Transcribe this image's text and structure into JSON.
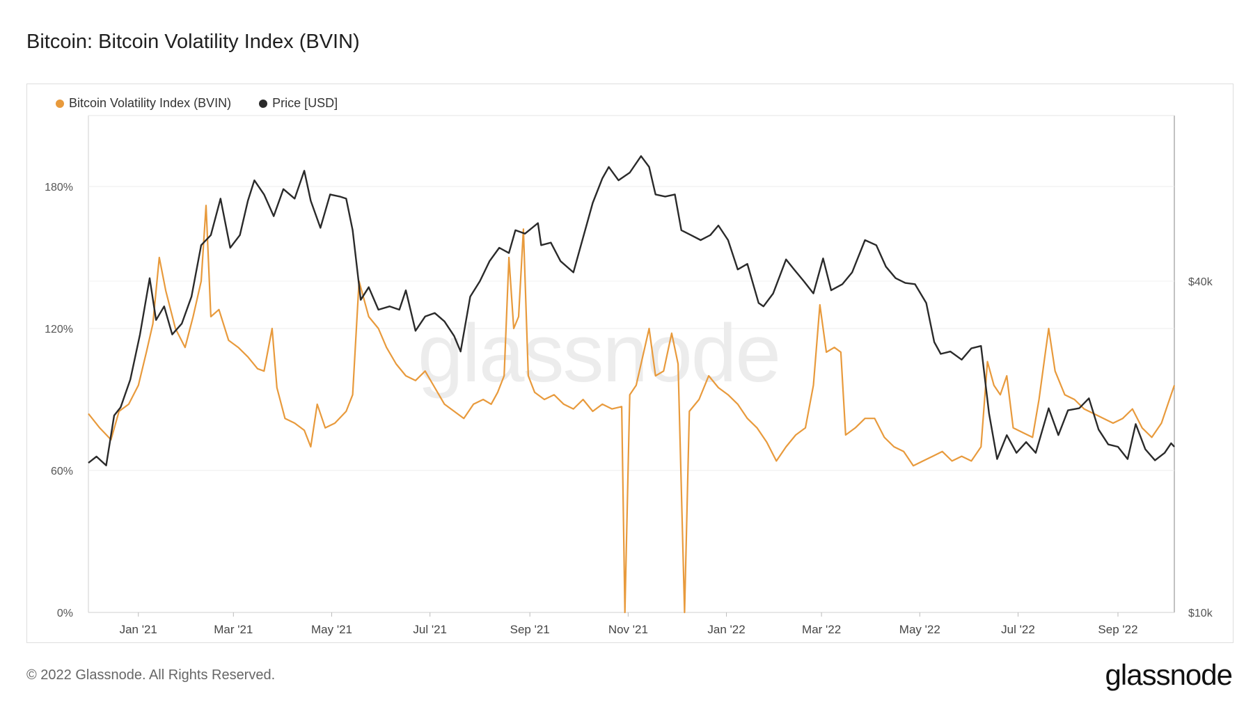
{
  "title": "Bitcoin: Bitcoin Volatility Index (BVIN)",
  "footer": "© 2022 Glassnode. All Rights Reserved.",
  "logo_text": "glassnode",
  "watermark_text": "glassnode",
  "chart_data": {
    "type": "line",
    "title": "Bitcoin: Bitcoin Volatility Index (BVIN)",
    "legend_position": "top-left",
    "x_ticks": [
      "Jan '21",
      "Mar '21",
      "May '21",
      "Jul '21",
      "Sep '21",
      "Nov '21",
      "Jan '22",
      "Mar '22",
      "May '22",
      "Jul '22",
      "Sep '22"
    ],
    "x_range": [
      "2020-12-01",
      "2022-10-06"
    ],
    "y_left": {
      "ticks": [
        "0%",
        "60%",
        "120%",
        "180%"
      ],
      "range": [
        0,
        210
      ],
      "unit": "%"
    },
    "y_right": {
      "ticks": [
        "$10k",
        "$40k"
      ],
      "scale": "log",
      "range": [
        10000,
        80000
      ]
    },
    "series": [
      {
        "name": "Bitcoin Volatility Index (BVIN)",
        "color": "#e89a3c",
        "axis": "left",
        "points": [
          [
            "2020-12-01",
            84
          ],
          [
            "2020-12-08",
            78
          ],
          [
            "2020-12-15",
            73
          ],
          [
            "2020-12-20",
            85
          ],
          [
            "2020-12-26",
            88
          ],
          [
            "2021-01-01",
            96
          ],
          [
            "2021-01-06",
            110
          ],
          [
            "2021-01-10",
            122
          ],
          [
            "2021-01-14",
            150
          ],
          [
            "2021-01-18",
            136
          ],
          [
            "2021-01-24",
            120
          ],
          [
            "2021-01-30",
            112
          ],
          [
            "2021-02-04",
            125
          ],
          [
            "2021-02-09",
            140
          ],
          [
            "2021-02-12",
            172
          ],
          [
            "2021-02-15",
            125
          ],
          [
            "2021-02-20",
            128
          ],
          [
            "2021-02-26",
            115
          ],
          [
            "2021-03-04",
            112
          ],
          [
            "2021-03-10",
            108
          ],
          [
            "2021-03-16",
            103
          ],
          [
            "2021-03-20",
            102
          ],
          [
            "2021-03-25",
            120
          ],
          [
            "2021-03-28",
            95
          ],
          [
            "2021-04-02",
            82
          ],
          [
            "2021-04-08",
            80
          ],
          [
            "2021-04-14",
            77
          ],
          [
            "2021-04-18",
            70
          ],
          [
            "2021-04-22",
            88
          ],
          [
            "2021-04-27",
            78
          ],
          [
            "2021-05-03",
            80
          ],
          [
            "2021-05-10",
            85
          ],
          [
            "2021-05-14",
            92
          ],
          [
            "2021-05-18",
            140
          ],
          [
            "2021-05-24",
            125
          ],
          [
            "2021-05-30",
            120
          ],
          [
            "2021-06-04",
            112
          ],
          [
            "2021-06-10",
            105
          ],
          [
            "2021-06-16",
            100
          ],
          [
            "2021-06-22",
            98
          ],
          [
            "2021-06-28",
            102
          ],
          [
            "2021-07-04",
            95
          ],
          [
            "2021-07-10",
            88
          ],
          [
            "2021-07-16",
            85
          ],
          [
            "2021-07-22",
            82
          ],
          [
            "2021-07-28",
            88
          ],
          [
            "2021-08-03",
            90
          ],
          [
            "2021-08-08",
            88
          ],
          [
            "2021-08-12",
            93
          ],
          [
            "2021-08-16",
            100
          ],
          [
            "2021-08-19",
            150
          ],
          [
            "2021-08-22",
            120
          ],
          [
            "2021-08-25",
            125
          ],
          [
            "2021-08-28",
            162
          ],
          [
            "2021-08-31",
            100
          ],
          [
            "2021-09-04",
            93
          ],
          [
            "2021-09-10",
            90
          ],
          [
            "2021-09-16",
            92
          ],
          [
            "2021-09-22",
            88
          ],
          [
            "2021-09-28",
            86
          ],
          [
            "2021-10-04",
            90
          ],
          [
            "2021-10-10",
            85
          ],
          [
            "2021-10-16",
            88
          ],
          [
            "2021-10-22",
            86
          ],
          [
            "2021-10-28",
            87
          ],
          [
            "2021-10-30",
            0
          ],
          [
            "2021-11-02",
            92
          ],
          [
            "2021-11-06",
            96
          ],
          [
            "2021-11-10",
            108
          ],
          [
            "2021-11-14",
            120
          ],
          [
            "2021-11-18",
            100
          ],
          [
            "2021-11-23",
            102
          ],
          [
            "2021-11-28",
            118
          ],
          [
            "2021-12-02",
            105
          ],
          [
            "2021-12-06",
            0
          ],
          [
            "2021-12-09",
            85
          ],
          [
            "2021-12-15",
            90
          ],
          [
            "2021-12-21",
            100
          ],
          [
            "2021-12-27",
            95
          ],
          [
            "2022-01-02",
            92
          ],
          [
            "2022-01-08",
            88
          ],
          [
            "2022-01-14",
            82
          ],
          [
            "2022-01-20",
            78
          ],
          [
            "2022-01-26",
            72
          ],
          [
            "2022-02-01",
            64
          ],
          [
            "2022-02-07",
            70
          ],
          [
            "2022-02-13",
            75
          ],
          [
            "2022-02-19",
            78
          ],
          [
            "2022-02-24",
            96
          ],
          [
            "2022-02-28",
            130
          ],
          [
            "2022-03-04",
            110
          ],
          [
            "2022-03-09",
            112
          ],
          [
            "2022-03-13",
            110
          ],
          [
            "2022-03-16",
            75
          ],
          [
            "2022-03-22",
            78
          ],
          [
            "2022-03-28",
            82
          ],
          [
            "2022-04-03",
            82
          ],
          [
            "2022-04-09",
            74
          ],
          [
            "2022-04-15",
            70
          ],
          [
            "2022-04-21",
            68
          ],
          [
            "2022-04-27",
            62
          ],
          [
            "2022-05-03",
            64
          ],
          [
            "2022-05-09",
            66
          ],
          [
            "2022-05-15",
            68
          ],
          [
            "2022-05-21",
            64
          ],
          [
            "2022-05-27",
            66
          ],
          [
            "2022-06-02",
            64
          ],
          [
            "2022-06-08",
            70
          ],
          [
            "2022-06-12",
            106
          ],
          [
            "2022-06-16",
            96
          ],
          [
            "2022-06-20",
            92
          ],
          [
            "2022-06-24",
            100
          ],
          [
            "2022-06-28",
            78
          ],
          [
            "2022-07-04",
            76
          ],
          [
            "2022-07-10",
            74
          ],
          [
            "2022-07-14",
            90
          ],
          [
            "2022-07-18",
            110
          ],
          [
            "2022-07-20",
            120
          ],
          [
            "2022-07-24",
            102
          ],
          [
            "2022-07-30",
            92
          ],
          [
            "2022-08-05",
            90
          ],
          [
            "2022-08-11",
            86
          ],
          [
            "2022-08-17",
            84
          ],
          [
            "2022-08-23",
            82
          ],
          [
            "2022-08-29",
            80
          ],
          [
            "2022-09-04",
            82
          ],
          [
            "2022-09-10",
            86
          ],
          [
            "2022-09-16",
            78
          ],
          [
            "2022-09-22",
            74
          ],
          [
            "2022-09-28",
            80
          ],
          [
            "2022-10-02",
            88
          ],
          [
            "2022-10-06",
            96
          ]
        ]
      },
      {
        "name": "Price [USD]",
        "color": "#2a2a2a",
        "axis": "right",
        "points": [
          [
            "2020-12-01",
            18700
          ],
          [
            "2020-12-06",
            19200
          ],
          [
            "2020-12-12",
            18500
          ],
          [
            "2020-12-17",
            22800
          ],
          [
            "2020-12-21",
            23600
          ],
          [
            "2020-12-27",
            26500
          ],
          [
            "2021-01-02",
            32000
          ],
          [
            "2021-01-08",
            40500
          ],
          [
            "2021-01-12",
            34000
          ],
          [
            "2021-01-17",
            36000
          ],
          [
            "2021-01-22",
            32000
          ],
          [
            "2021-01-28",
            33500
          ],
          [
            "2021-02-03",
            37500
          ],
          [
            "2021-02-09",
            46500
          ],
          [
            "2021-02-15",
            48500
          ],
          [
            "2021-02-21",
            56500
          ],
          [
            "2021-02-27",
            46000
          ],
          [
            "2021-03-05",
            48500
          ],
          [
            "2021-03-10",
            56000
          ],
          [
            "2021-03-14",
            61000
          ],
          [
            "2021-03-20",
            57500
          ],
          [
            "2021-03-26",
            52500
          ],
          [
            "2021-04-01",
            58800
          ],
          [
            "2021-04-08",
            56500
          ],
          [
            "2021-04-14",
            63500
          ],
          [
            "2021-04-18",
            56000
          ],
          [
            "2021-04-24",
            50000
          ],
          [
            "2021-04-30",
            57500
          ],
          [
            "2021-05-06",
            57000
          ],
          [
            "2021-05-10",
            56500
          ],
          [
            "2021-05-14",
            49500
          ],
          [
            "2021-05-19",
            37000
          ],
          [
            "2021-05-24",
            39000
          ],
          [
            "2021-05-30",
            35500
          ],
          [
            "2021-06-06",
            36000
          ],
          [
            "2021-06-12",
            35500
          ],
          [
            "2021-06-16",
            38500
          ],
          [
            "2021-06-22",
            32500
          ],
          [
            "2021-06-28",
            34500
          ],
          [
            "2021-07-04",
            35000
          ],
          [
            "2021-07-10",
            33800
          ],
          [
            "2021-07-16",
            31800
          ],
          [
            "2021-07-20",
            29800
          ],
          [
            "2021-07-26",
            37500
          ],
          [
            "2021-08-01",
            40000
          ],
          [
            "2021-08-07",
            43500
          ],
          [
            "2021-08-13",
            46000
          ],
          [
            "2021-08-19",
            45000
          ],
          [
            "2021-08-23",
            49500
          ],
          [
            "2021-08-29",
            48800
          ],
          [
            "2021-09-06",
            51000
          ],
          [
            "2021-09-08",
            46500
          ],
          [
            "2021-09-14",
            47000
          ],
          [
            "2021-09-20",
            43500
          ],
          [
            "2021-09-28",
            41500
          ],
          [
            "2021-10-04",
            48000
          ],
          [
            "2021-10-10",
            55500
          ],
          [
            "2021-10-16",
            61500
          ],
          [
            "2021-10-20",
            64500
          ],
          [
            "2021-10-26",
            61000
          ],
          [
            "2021-11-02",
            63000
          ],
          [
            "2021-11-09",
            67500
          ],
          [
            "2021-11-14",
            64500
          ],
          [
            "2021-11-18",
            57500
          ],
          [
            "2021-11-24",
            57000
          ],
          [
            "2021-11-30",
            57500
          ],
          [
            "2021-12-04",
            49500
          ],
          [
            "2021-12-10",
            48500
          ],
          [
            "2021-12-16",
            47500
          ],
          [
            "2021-12-22",
            48500
          ],
          [
            "2021-12-27",
            50500
          ],
          [
            "2022-01-02",
            47500
          ],
          [
            "2022-01-08",
            42000
          ],
          [
            "2022-01-14",
            43000
          ],
          [
            "2022-01-21",
            36500
          ],
          [
            "2022-01-24",
            36000
          ],
          [
            "2022-01-30",
            38000
          ],
          [
            "2022-02-07",
            43800
          ],
          [
            "2022-02-12",
            42000
          ],
          [
            "2022-02-18",
            40000
          ],
          [
            "2022-02-24",
            38000
          ],
          [
            "2022-03-02",
            44000
          ],
          [
            "2022-03-07",
            38500
          ],
          [
            "2022-03-14",
            39500
          ],
          [
            "2022-03-20",
            41500
          ],
          [
            "2022-03-28",
            47500
          ],
          [
            "2022-04-04",
            46500
          ],
          [
            "2022-04-10",
            42500
          ],
          [
            "2022-04-16",
            40500
          ],
          [
            "2022-04-22",
            39700
          ],
          [
            "2022-04-28",
            39500
          ],
          [
            "2022-05-05",
            36500
          ],
          [
            "2022-05-10",
            31000
          ],
          [
            "2022-05-14",
            29500
          ],
          [
            "2022-05-20",
            29800
          ],
          [
            "2022-05-27",
            28800
          ],
          [
            "2022-06-02",
            30200
          ],
          [
            "2022-06-08",
            30500
          ],
          [
            "2022-06-13",
            23000
          ],
          [
            "2022-06-18",
            19000
          ],
          [
            "2022-06-24",
            21000
          ],
          [
            "2022-06-30",
            19500
          ],
          [
            "2022-07-06",
            20400
          ],
          [
            "2022-07-12",
            19500
          ],
          [
            "2022-07-20",
            23500
          ],
          [
            "2022-07-26",
            21000
          ],
          [
            "2022-08-01",
            23300
          ],
          [
            "2022-08-08",
            23500
          ],
          [
            "2022-08-14",
            24500
          ],
          [
            "2022-08-20",
            21500
          ],
          [
            "2022-08-26",
            20200
          ],
          [
            "2022-09-01",
            20000
          ],
          [
            "2022-09-07",
            19000
          ],
          [
            "2022-09-12",
            22000
          ],
          [
            "2022-09-18",
            19800
          ],
          [
            "2022-09-24",
            18900
          ],
          [
            "2022-09-30",
            19500
          ],
          [
            "2022-10-04",
            20300
          ],
          [
            "2022-10-06",
            20000
          ]
        ]
      }
    ]
  },
  "colors": {
    "bvin": "#e89a3c",
    "price": "#2a2a2a",
    "grid": "#ececec"
  }
}
